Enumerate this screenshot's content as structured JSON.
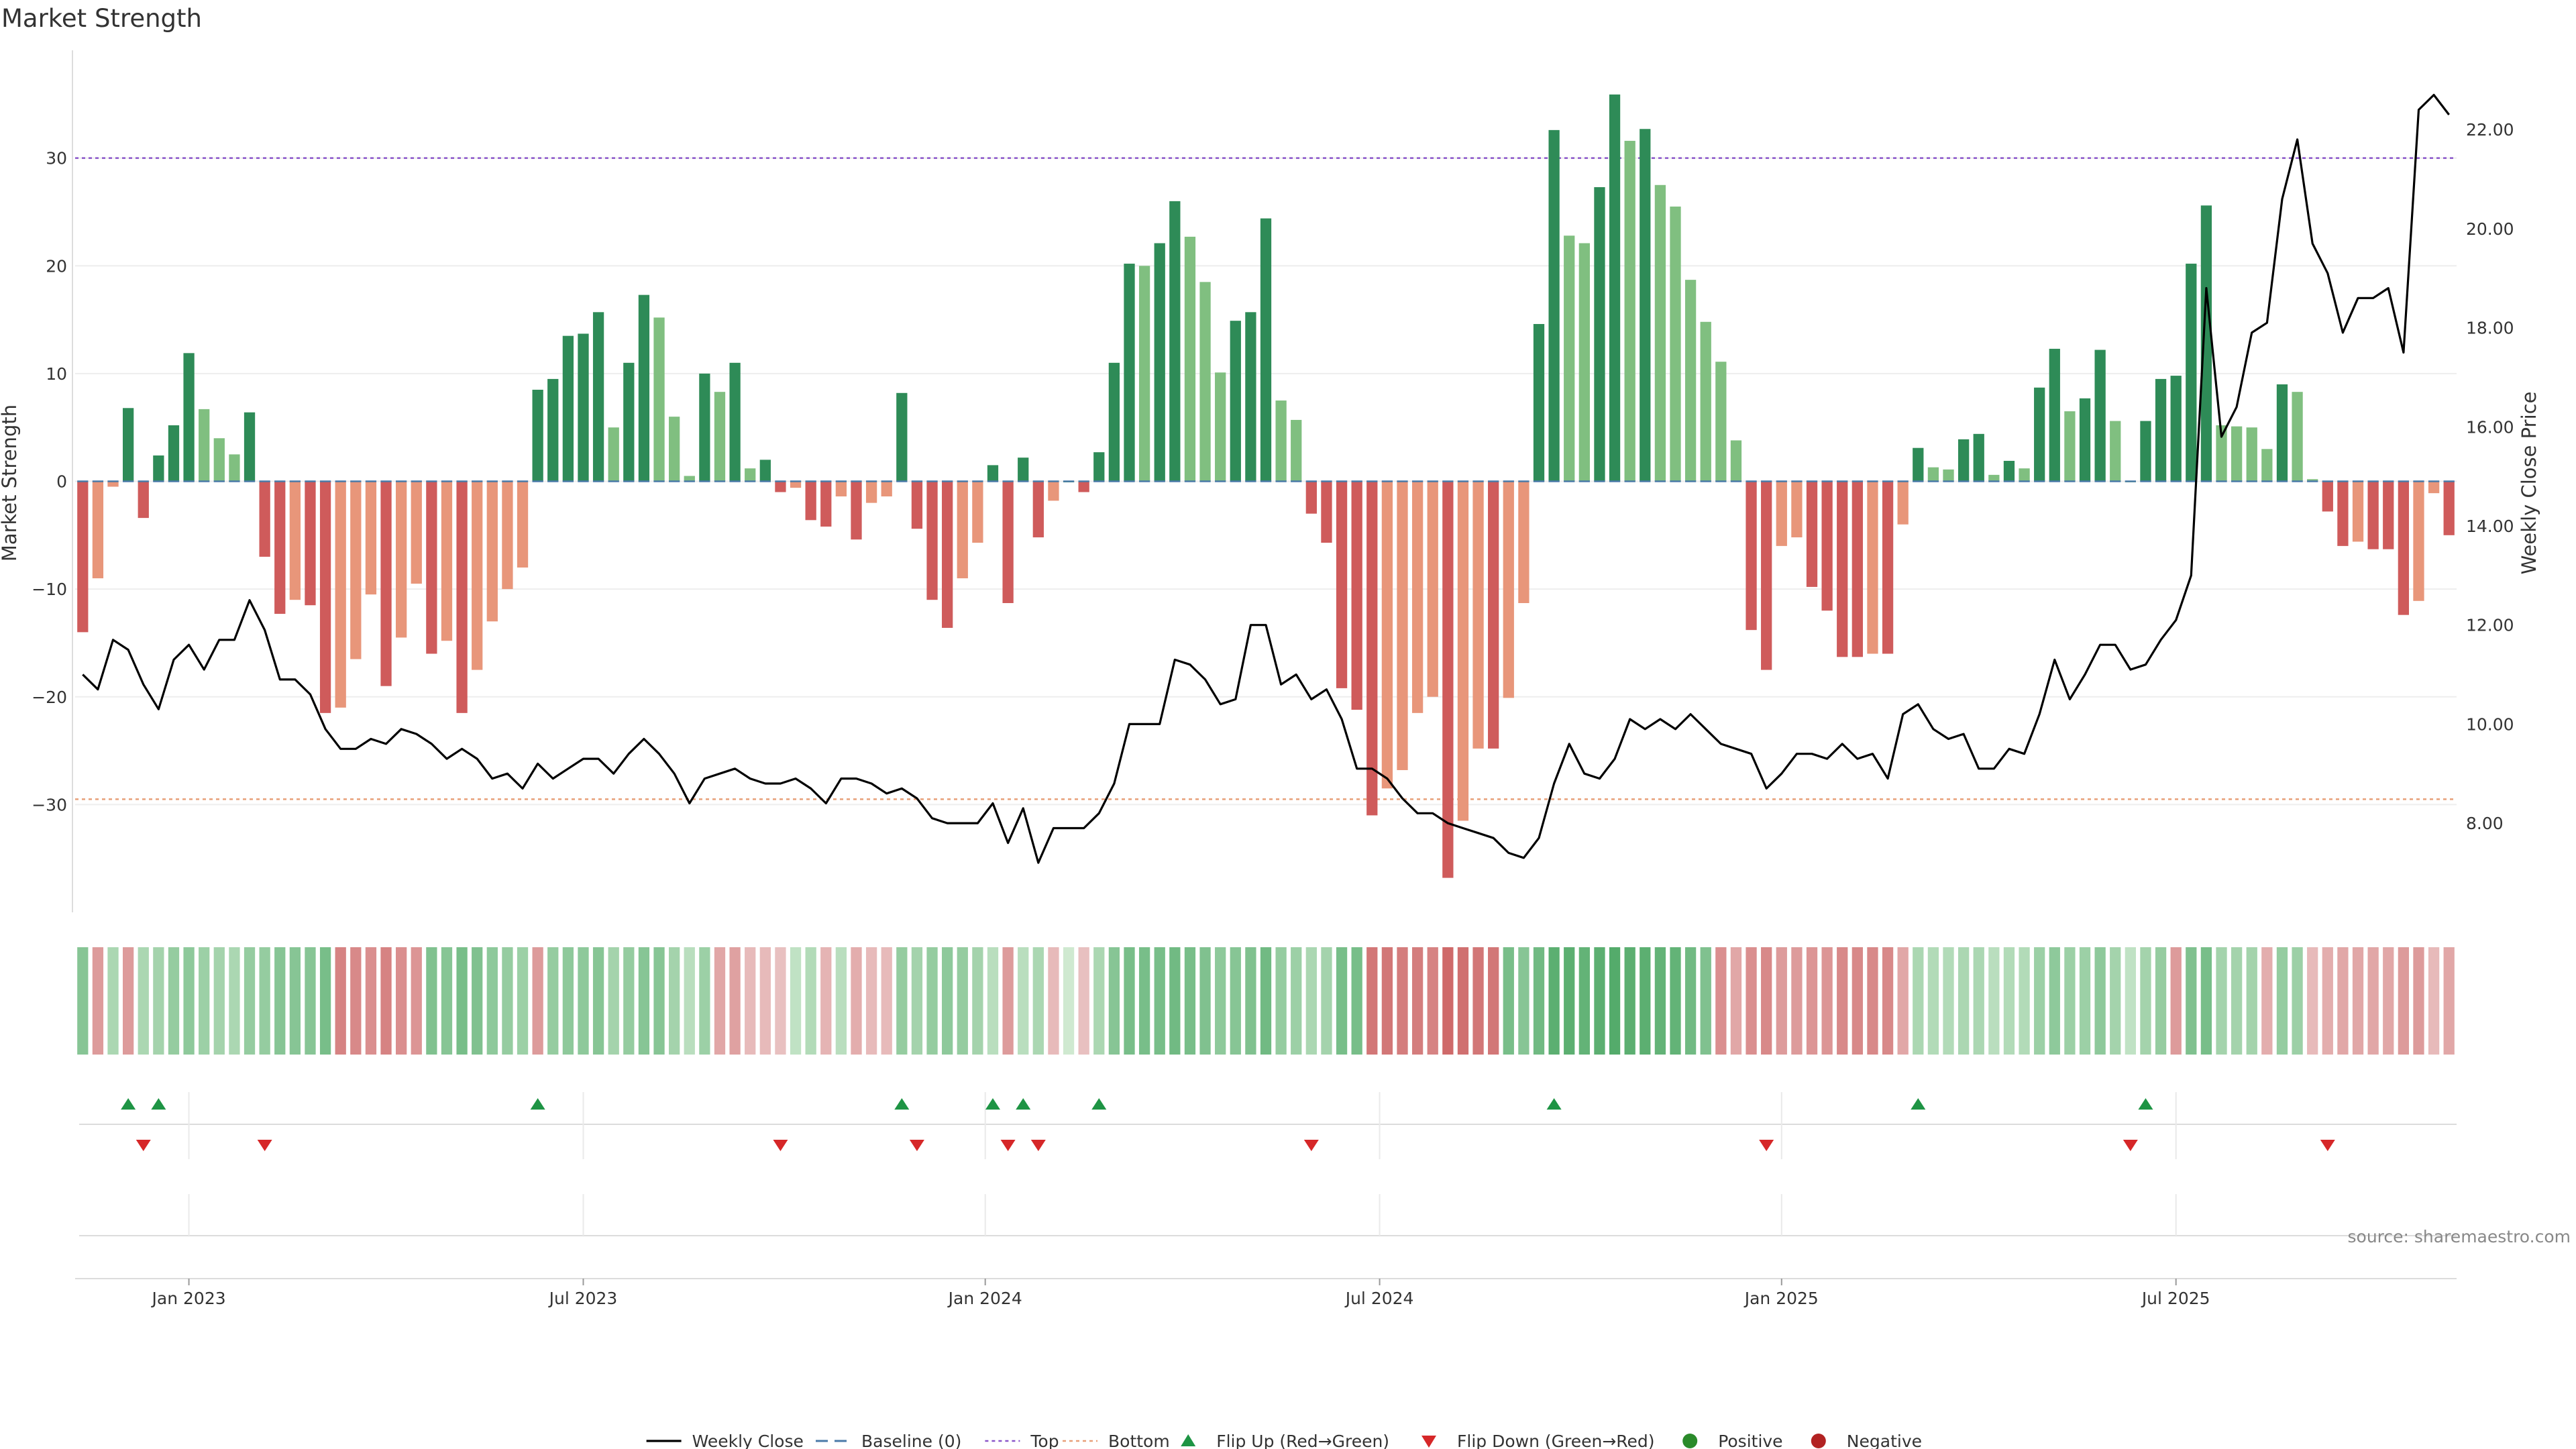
{
  "chart_data": {
    "type": "bar",
    "title": "Market Strength",
    "ylabel": "Market Strength",
    "y2label": "Weekly Close Price",
    "source": "source: sharemaestro.com",
    "ylim": [
      -40,
      40
    ],
    "y2lim": [
      6.2,
      23.6
    ],
    "y_ticks": [
      30,
      20,
      10,
      0,
      -10,
      -20,
      -30
    ],
    "y_tick_labels": [
      "30",
      "20",
      "10",
      "0",
      "−10",
      "−20",
      "−30"
    ],
    "y2_ticks": [
      22,
      20,
      18,
      16,
      14,
      12,
      10,
      8
    ],
    "y2_tick_labels": [
      "22.00",
      "20.00",
      "18.00",
      "16.00",
      "14.00",
      "12.00",
      "10.00",
      "8.00"
    ],
    "x_tick_labels": [
      "Jan 2023",
      "Jul 2023",
      "Jan 2024",
      "Jul 2024",
      "Jan 2025",
      "Jul 2025"
    ],
    "x_tick_weeks": [
      7,
      33,
      59.5,
      85.5,
      112,
      138
    ],
    "top_line": 30,
    "bottom_line": -29.5,
    "strength": [
      -14,
      -9,
      -0.5,
      6.8,
      -3.4,
      2.4,
      5.2,
      11.9,
      6.7,
      4,
      2.5,
      6.4,
      -7,
      -12.3,
      -11,
      -11.5,
      -21.5,
      -21,
      -16.5,
      -10.5,
      -19,
      -14.5,
      -9.5,
      -16,
      -14.8,
      -21.5,
      -17.5,
      -13,
      -10,
      -8,
      8.5,
      9.5,
      13.5,
      13.7,
      15.7,
      5,
      11,
      17.3,
      15.2,
      6,
      0.5,
      10,
      8.3,
      11,
      1.2,
      2,
      -1,
      -0.6,
      -3.6,
      -4.2,
      -1.4,
      -5.4,
      -2,
      -1.4,
      8.2,
      -4.4,
      -11,
      -13.6,
      -9,
      -5.7,
      1.5,
      -11.3,
      2.2,
      -5.2,
      -1.8,
      0,
      -1,
      2.7,
      11,
      20.2,
      20,
      22.1,
      26,
      22.7,
      18.5,
      10.1,
      14.9,
      15.7,
      24.4,
      7.5,
      5.7,
      -3,
      -5.7,
      -19.2,
      -21.2,
      -31,
      -28.5,
      -26.8,
      -21.5,
      -20,
      -36.8,
      -31.5,
      -24.8,
      -24.8,
      -20.1,
      -11.3,
      14.6,
      32.6,
      22.8,
      22.1,
      27.3,
      35.9,
      31.6,
      32.7,
      27.5,
      25.5,
      18.7,
      14.8,
      11.1,
      3.8,
      -13.8,
      -17.5,
      -6,
      -5.2,
      -9.8,
      -12,
      -16.3,
      -16.3,
      -16,
      -16,
      -4,
      3.1,
      1.3,
      1.1,
      3.9,
      4.4,
      0.6,
      1.9,
      1.2,
      8.7,
      12.3,
      6.5,
      7.7,
      12.2,
      5.6,
      0,
      5.6,
      9.5,
      9.8,
      20.2,
      25.6,
      5.2,
      5.1,
      5,
      3,
      9,
      8.3,
      0.2,
      -2.8,
      -6,
      -5.6,
      -6.3,
      -6.3,
      -12.4,
      -11.1,
      -1.1,
      -5
    ],
    "price": [
      11,
      10.7,
      11.7,
      11.5,
      10.8,
      10.3,
      11.3,
      11.6,
      11.1,
      11.7,
      11.7,
      12.5,
      11.9,
      10.9,
      10.9,
      10.6,
      9.9,
      9.5,
      9.5,
      9.7,
      9.6,
      9.9,
      9.8,
      9.6,
      9.3,
      9.5,
      9.3,
      8.9,
      9.0,
      8.7,
      9.2,
      8.9,
      9.1,
      9.3,
      9.3,
      9,
      9.4,
      9.7,
      9.4,
      9,
      8.4,
      8.9,
      9,
      9.1,
      8.9,
      8.8,
      8.8,
      8.9,
      8.7,
      8.4,
      8.9,
      8.9,
      8.8,
      8.6,
      8.7,
      8.5,
      8.1,
      8,
      8,
      8,
      8.4,
      7.6,
      8.3,
      7.2,
      7.9,
      7.9,
      7.9,
      8.2,
      8.8,
      10,
      10,
      10,
      11.3,
      11.2,
      10.9,
      10.4,
      10.5,
      12,
      12,
      10.8,
      11,
      10.5,
      10.7,
      10.1,
      9.1,
      9.1,
      8.9,
      8.5,
      8.2,
      8.2,
      8,
      7.9,
      7.8,
      7.7,
      7.4,
      7.3,
      7.7,
      8.8,
      9.6,
      9,
      8.9,
      9.3,
      10.1,
      9.9,
      10.1,
      9.9,
      10.2,
      9.9,
      9.6,
      9.5,
      9.4,
      8.7,
      9,
      9.4,
      9.4,
      9.3,
      9.6,
      9.3,
      9.4,
      8.9,
      10.2,
      10.4,
      9.9,
      9.7,
      9.8,
      9.1,
      9.1,
      9.5,
      9.4,
      10.2,
      11.3,
      10.5,
      11,
      11.6,
      11.6,
      11.1,
      11.2,
      11.7,
      12.1,
      13,
      18.8,
      15.8,
      16.4,
      17.9,
      18.1,
      20.6,
      21.8,
      19.7,
      19.1,
      17.9,
      18.6,
      18.6,
      18.8,
      17.5,
      22.4,
      22.7,
      22.3
    ],
    "strip_flags": "101011111111111110000001111111011111111111000001101000111111101101011111111111111111100000000011111111111111000000000000011111111111111111011111011000000000",
    "strip_intensity": [
      0.55,
      0.45,
      0.3,
      0.45,
      0.3,
      0.35,
      0.45,
      0.5,
      0.4,
      0.35,
      0.3,
      0.45,
      0.45,
      0.55,
      0.55,
      0.55,
      0.65,
      0.65,
      0.6,
      0.55,
      0.65,
      0.55,
      0.5,
      0.6,
      0.55,
      0.65,
      0.6,
      0.5,
      0.45,
      0.4,
      0.45,
      0.45,
      0.5,
      0.5,
      0.55,
      0.35,
      0.45,
      0.55,
      0.55,
      0.35,
      0.2,
      0.4,
      0.35,
      0.4,
      0.2,
      0.2,
      0.15,
      0.15,
      0.25,
      0.25,
      0.2,
      0.3,
      0.2,
      0.2,
      0.45,
      0.35,
      0.45,
      0.5,
      0.45,
      0.35,
      0.2,
      0.45,
      0.2,
      0.3,
      0.2,
      0.05,
      0.15,
      0.3,
      0.55,
      0.65,
      0.65,
      0.65,
      0.7,
      0.65,
      0.6,
      0.5,
      0.55,
      0.6,
      0.7,
      0.45,
      0.4,
      0.3,
      0.35,
      0.65,
      0.65,
      0.75,
      0.75,
      0.7,
      0.7,
      0.65,
      0.85,
      0.8,
      0.75,
      0.75,
      0.65,
      0.55,
      0.7,
      0.85,
      0.85,
      0.8,
      0.85,
      0.9,
      0.85,
      0.85,
      0.8,
      0.8,
      0.7,
      0.6,
      0.55,
      0.35,
      0.55,
      0.6,
      0.45,
      0.45,
      0.5,
      0.5,
      0.6,
      0.6,
      0.6,
      0.6,
      0.35,
      0.3,
      0.25,
      0.25,
      0.3,
      0.3,
      0.2,
      0.25,
      0.25,
      0.4,
      0.5,
      0.4,
      0.4,
      0.5,
      0.35,
      0.15,
      0.35,
      0.45,
      0.45,
      0.6,
      0.65,
      0.35,
      0.35,
      0.35,
      0.3,
      0.45,
      0.4,
      0.2,
      0.3,
      0.35,
      0.35,
      0.35,
      0.35,
      0.45,
      0.45,
      0.2,
      0.35
    ],
    "flip_up_weeks": [
      3,
      5,
      30,
      54,
      60,
      62,
      67,
      97,
      121,
      136
    ],
    "flip_down_weeks": [
      4,
      12,
      46,
      55,
      61,
      63,
      81,
      111,
      135,
      148
    ],
    "legend": [
      {
        "label": "Weekly Close",
        "kind": "line",
        "color": "#000000"
      },
      {
        "label": "Baseline (0)",
        "kind": "dashed",
        "color": "#4a7aa8"
      },
      {
        "label": "Top",
        "kind": "dotted",
        "color": "#8a56c9"
      },
      {
        "label": "Bottom",
        "kind": "dotted",
        "color": "#e8a07a"
      },
      {
        "label": "Flip Up (Red→Green)",
        "kind": "tri-up",
        "color": "#1e9444"
      },
      {
        "label": "Flip Down (Green→Red)",
        "kind": "tri-down",
        "color": "#d62728"
      },
      {
        "label": "Positive",
        "kind": "dot",
        "color": "#2a8a2a"
      },
      {
        "label": "Negative",
        "kind": "dot",
        "color": "#b22222"
      }
    ]
  }
}
